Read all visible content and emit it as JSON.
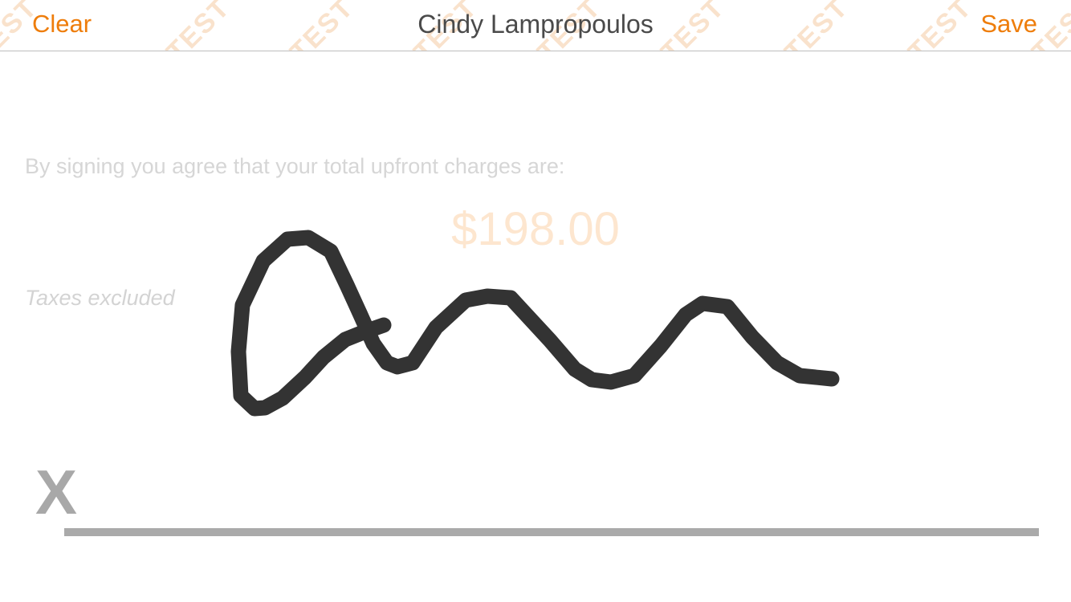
{
  "header": {
    "clear_label": "Clear",
    "title": "Cindy Lampropoulos",
    "save_label": "Save",
    "accent_color": "#ee7d0b",
    "watermark_text": "TEST"
  },
  "agreement": {
    "text": "By signing you agree that your total upfront charges are:",
    "amount": "$198.00",
    "taxes_note": "Taxes excluded"
  },
  "signature": {
    "x_label": "X",
    "ink_color": "#333333"
  }
}
